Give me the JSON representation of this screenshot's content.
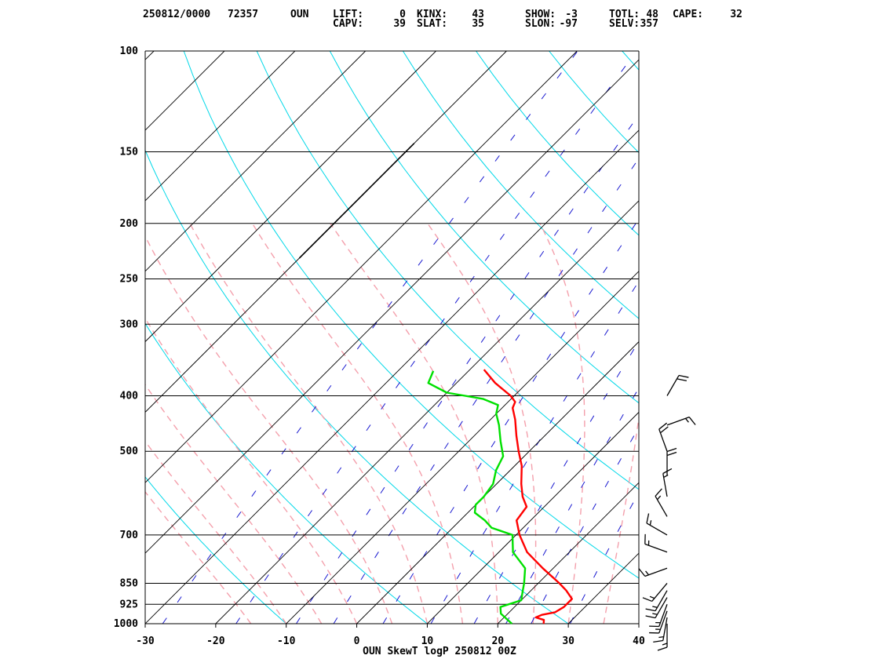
{
  "header": {
    "line1": [
      {
        "text": "250812/0000"
      },
      {
        "text": "72357"
      },
      {
        "text": "OUN"
      },
      {
        "text": "LIFT:"
      },
      {
        "text": "0"
      },
      {
        "text": "KINX:"
      },
      {
        "text": "43"
      },
      {
        "text": "SHOW:"
      },
      {
        "text": "-3"
      },
      {
        "text": "TOTL:"
      },
      {
        "text": "48"
      },
      {
        "text": "CAPE:"
      },
      {
        "text": "32"
      }
    ],
    "line2": [
      {
        "text": "CAPV:"
      },
      {
        "text": "39"
      },
      {
        "text": "SLAT:"
      },
      {
        "text": "35"
      },
      {
        "text": "SLON:"
      },
      {
        "text": "-97"
      },
      {
        "text": "SELV:"
      },
      {
        "text": "357"
      }
    ]
  },
  "footer": {
    "title": "OUN SkewT logP 250812 00Z"
  },
  "chart_data": {
    "type": "line",
    "subtype": "skew-T log-P sounding",
    "station": "OUN",
    "xlabel": "",
    "ylabel": "",
    "temperature_range": [
      -30,
      40
    ],
    "pressure_range": [
      1000,
      100
    ],
    "x_scale": "linear (skewed 45 deg)",
    "y_scale": "log",
    "temperature_ticks": [
      -30,
      -20,
      -10,
      0,
      10,
      20,
      30,
      40
    ],
    "pressure_ticks": [
      100,
      150,
      200,
      250,
      300,
      400,
      500,
      700,
      850,
      925,
      1000
    ],
    "series": [
      {
        "color": "#ff0000",
        "points": [
          {
            "p": 1000,
            "t": 26.5
          },
          {
            "p": 985,
            "t": 26
          },
          {
            "p": 975,
            "t": 24.5
          },
          {
            "p": 965,
            "t": 25
          },
          {
            "p": 955,
            "t": 26.5
          },
          {
            "p": 935,
            "t": 27
          },
          {
            "p": 905,
            "t": 27
          },
          {
            "p": 875,
            "t": 25
          },
          {
            "p": 850,
            "t": 23
          },
          {
            "p": 800,
            "t": 18.5
          },
          {
            "p": 750,
            "t": 14
          },
          {
            "p": 700,
            "t": 10.5
          },
          {
            "p": 660,
            "t": 8
          },
          {
            "p": 625,
            "t": 7.5
          },
          {
            "p": 600,
            "t": 5.5
          },
          {
            "p": 570,
            "t": 3.5
          },
          {
            "p": 530,
            "t": 1
          },
          {
            "p": 500,
            "t": -1.5
          },
          {
            "p": 470,
            "t": -4
          },
          {
            "p": 440,
            "t": -6.5
          },
          {
            "p": 420,
            "t": -8.5
          },
          {
            "p": 410,
            "t": -9
          },
          {
            "p": 400,
            "t": -10.5
          },
          {
            "p": 380,
            "t": -14.5
          },
          {
            "p": 360,
            "t": -18
          }
        ]
      },
      {
        "color": "#00e000",
        "points": [
          {
            "p": 1000,
            "t": 22
          },
          {
            "p": 980,
            "t": 20.5
          },
          {
            "p": 960,
            "t": 19
          },
          {
            "p": 935,
            "t": 18
          },
          {
            "p": 910,
            "t": 20
          },
          {
            "p": 880,
            "t": 19
          },
          {
            "p": 850,
            "t": 18
          },
          {
            "p": 800,
            "t": 16
          },
          {
            "p": 750,
            "t": 12
          },
          {
            "p": 700,
            "t": 9.5
          },
          {
            "p": 680,
            "t": 5.5
          },
          {
            "p": 660,
            "t": 3.5
          },
          {
            "p": 640,
            "t": 1
          },
          {
            "p": 620,
            "t": 0
          },
          {
            "p": 600,
            "t": 0
          },
          {
            "p": 570,
            "t": -0.5
          },
          {
            "p": 540,
            "t": -2
          },
          {
            "p": 510,
            "t": -3
          },
          {
            "p": 480,
            "t": -5.5
          },
          {
            "p": 450,
            "t": -8
          },
          {
            "p": 430,
            "t": -10
          },
          {
            "p": 415,
            "t": -11
          },
          {
            "p": 405,
            "t": -14
          },
          {
            "p": 395,
            "t": -20
          },
          {
            "p": 380,
            "t": -24
          },
          {
            "p": 362,
            "t": -25
          }
        ]
      }
    ],
    "wind_barbs": [
      {
        "p": 1000,
        "dir": 180,
        "kt": 15
      },
      {
        "p": 975,
        "dir": 190,
        "kt": 15
      },
      {
        "p": 950,
        "dir": 200,
        "kt": 15
      },
      {
        "p": 925,
        "dir": 200,
        "kt": 15
      },
      {
        "p": 900,
        "dir": 210,
        "kt": 15
      },
      {
        "p": 875,
        "dir": 210,
        "kt": 15
      },
      {
        "p": 850,
        "dir": 220,
        "kt": 15
      },
      {
        "p": 800,
        "dir": 250,
        "kt": 15
      },
      {
        "p": 750,
        "dir": 290,
        "kt": 15
      },
      {
        "p": 700,
        "dir": 300,
        "kt": 15
      },
      {
        "p": 650,
        "dir": 330,
        "kt": 15
      },
      {
        "p": 600,
        "dir": 350,
        "kt": 15
      },
      {
        "p": 550,
        "dir": 0,
        "kt": 20
      },
      {
        "p": 500,
        "dir": 340,
        "kt": 20
      },
      {
        "p": 450,
        "dir": 70,
        "kt": 15
      },
      {
        "p": 400,
        "dir": 30,
        "kt": 20
      }
    ]
  }
}
